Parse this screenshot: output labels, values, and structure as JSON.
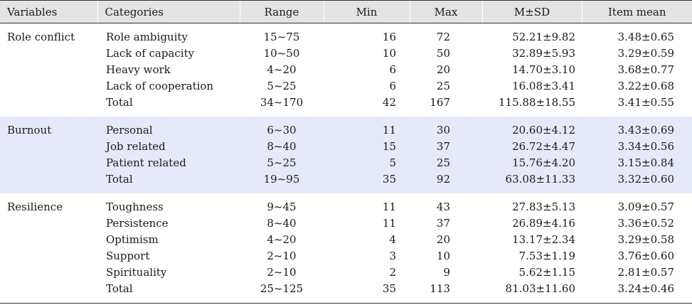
{
  "headers": {
    "variables": "Variables",
    "categories": "Categories",
    "range": "Range",
    "min": "Min",
    "max": "Max",
    "msd": "M±SD",
    "item_mean": "Item mean"
  },
  "groups": [
    {
      "variable": "Role conflict",
      "rows": [
        {
          "category": "Role ambiguity",
          "range": "15~75",
          "min": "16",
          "max": "72",
          "msd": "52.21±9.82",
          "item_mean": "3.48±0.65"
        },
        {
          "category": "Lack of capacity",
          "range": "10~50",
          "min": "10",
          "max": "50",
          "msd": "32.89±5.93",
          "item_mean": "3.29±0.59"
        },
        {
          "category": "Heavy work",
          "range": "4~20",
          "min": "6",
          "max": "20",
          "msd": "14.70±3.10",
          "item_mean": "3.68±0.77"
        },
        {
          "category": "Lack of cooperation",
          "range": "5~25",
          "min": "6",
          "max": "25",
          "msd": "16.08±3.41",
          "item_mean": "3.22±0.68"
        },
        {
          "category": "Total",
          "range": "34~170",
          "min": "42",
          "max": "167",
          "msd": "115.88±18.55",
          "item_mean": "3.41±0.55"
        }
      ]
    },
    {
      "variable": "Burnout",
      "rows": [
        {
          "category": "Personal",
          "range": "6~30",
          "min": "11",
          "max": "30",
          "msd": "20.60±4.12",
          "item_mean": "3.43±0.69"
        },
        {
          "category": "Job related",
          "range": "8~40",
          "min": "15",
          "max": "37",
          "msd": "26.72±4.47",
          "item_mean": "3.34±0.56"
        },
        {
          "category": "Patient related",
          "range": "5~25",
          "min": "5",
          "max": "25",
          "msd": "15.76±4.20",
          "item_mean": "3.15±0.84"
        },
        {
          "category": "Total",
          "range": "19~95",
          "min": "35",
          "max": "92",
          "msd": "63.08±11.33",
          "item_mean": "3.32±0.60"
        }
      ]
    },
    {
      "variable": "Resilience",
      "rows": [
        {
          "category": "Toughness",
          "range": "9~45",
          "min": "11",
          "max": "43",
          "msd": "27.83±5.13",
          "item_mean": "3.09±0.57"
        },
        {
          "category": "Persistence",
          "range": "8~40",
          "min": "11",
          "max": "37",
          "msd": "26.89±4.16",
          "item_mean": "3.36±0.52"
        },
        {
          "category": "Optimism",
          "range": "4~20",
          "min": "4",
          "max": "20",
          "msd": "13.17±2.34",
          "item_mean": "3.29±0.58"
        },
        {
          "category": "Support",
          "range": "2~10",
          "min": "3",
          "max": "10",
          "msd": "7.53±1.19",
          "item_mean": "3.76±0.60"
        },
        {
          "category": "Spirituality",
          "range": "2~10",
          "min": "2",
          "max": "9",
          "msd": "5.62±1.15",
          "item_mean": "2.81±0.57"
        },
        {
          "category": "Total",
          "range": "25~125",
          "min": "35",
          "max": "113",
          "msd": "81.03±11.60",
          "item_mean": "3.24±0.46"
        }
      ]
    }
  ]
}
